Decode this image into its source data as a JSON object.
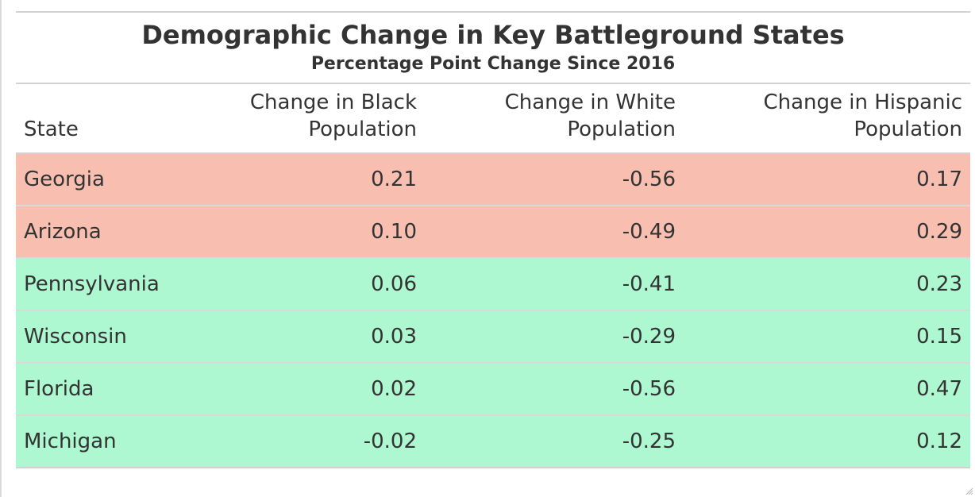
{
  "chart_data": {
    "type": "table",
    "title": "Demographic Change in Key Battleground States",
    "subtitle": "Percentage Point Change Since 2016",
    "columns": [
      "State",
      "Change in Black Population",
      "Change in White Population",
      "Change in Hispanic Population"
    ],
    "rows": [
      {
        "state": "Georgia",
        "black": "0.21",
        "white": "-0.56",
        "hispanic": "0.17",
        "highlight": "#f8bfb0"
      },
      {
        "state": "Arizona",
        "black": "0.10",
        "white": "-0.49",
        "hispanic": "0.29",
        "highlight": "#f8bfb0"
      },
      {
        "state": "Pennsylvania",
        "black": "0.06",
        "white": "-0.41",
        "hispanic": "0.23",
        "highlight": "#adf7d1"
      },
      {
        "state": "Wisconsin",
        "black": "0.03",
        "white": "-0.29",
        "hispanic": "0.15",
        "highlight": "#adf7d1"
      },
      {
        "state": "Florida",
        "black": "0.02",
        "white": "-0.56",
        "hispanic": "0.47",
        "highlight": "#adf7d1"
      },
      {
        "state": "Michigan",
        "black": "-0.02",
        "white": "-0.25",
        "hispanic": "0.12",
        "highlight": "#adf7d1"
      }
    ]
  }
}
